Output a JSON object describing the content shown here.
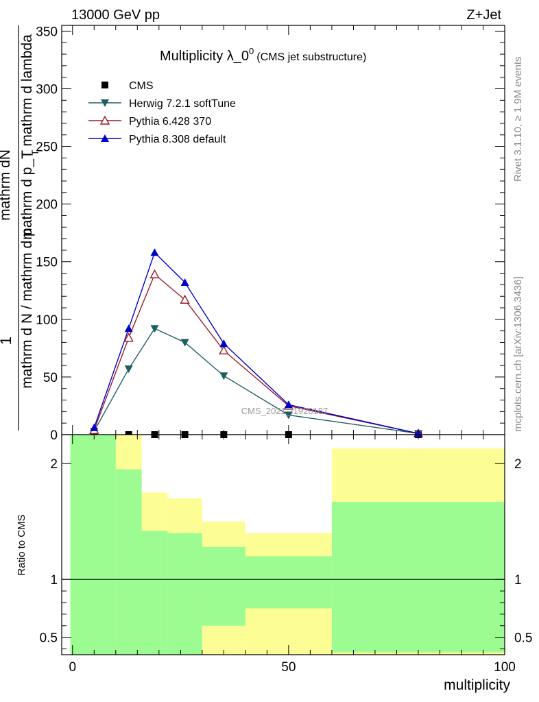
{
  "header": {
    "left": "13000 GeV pp",
    "right": "Z+Jet"
  },
  "side_labels": {
    "rivet": "Rivet 3.1.10, ≥ 1.9M events",
    "mcplots": "mcplots.cern.ch [arXiv:1306.3436]"
  },
  "watermark": "CMS_2021_I1920187",
  "chart_data": [
    {
      "type": "line",
      "title_main": "Multiplicity λ_0",
      "title_sup": "0",
      "title_sub": "(CMS jet substructure)",
      "ylabel_left_1": "1",
      "ylabel_frac_num": "mathrm dN",
      "ylabel_frac_den": "mathrm d p_T mathrm d lambda",
      "ylabel_den_main": "mathrm d N / mathrm d p",
      "ylabel_den_mid": " mathrm d p",
      "ylabel_den_end": " mathrm d lambda",
      "xlim": [
        -2.5,
        100
      ],
      "ylim": [
        0,
        355
      ],
      "x_ticks": [
        0,
        50,
        100
      ],
      "y_ticks": [
        0,
        50,
        100,
        150,
        200,
        250,
        300,
        350
      ],
      "legend_position": "top-left",
      "series": [
        {
          "name": "CMS",
          "marker": "square",
          "color": "#000000",
          "x": [
            5,
            13,
            19,
            26,
            35,
            50,
            80
          ],
          "y": [
            0,
            0,
            0,
            0,
            0,
            0,
            0
          ]
        },
        {
          "name": "Herwig 7.2.1 softTune",
          "marker": "triangle-down",
          "color": "#1c5e63",
          "x": [
            5,
            13,
            19,
            26,
            35,
            50,
            80
          ],
          "y": [
            3,
            57,
            92,
            80,
            51,
            17,
            1
          ]
        },
        {
          "name": "Pythia 6.428 370",
          "marker": "triangle-up-open",
          "color": "#9b1b24",
          "x": [
            5,
            13,
            19,
            26,
            35,
            50,
            80
          ],
          "y": [
            4,
            84,
            139,
            117,
            73,
            25,
            1
          ]
        },
        {
          "name": "Pythia 8.308 default",
          "marker": "triangle-up",
          "color": "#0000cc",
          "x": [
            5,
            13,
            19,
            26,
            35,
            50,
            80
          ],
          "y": [
            6,
            92,
            158,
            132,
            79,
            26,
            1
          ]
        }
      ]
    },
    {
      "type": "area",
      "ylabel": "Ratio to CMS",
      "xlabel": "multiplicity",
      "xlim": [
        -2.5,
        100
      ],
      "ylim": [
        0.35,
        2.25
      ],
      "y_ticks": [
        0.5,
        1,
        2
      ],
      "reference_line": 1,
      "bins": [
        {
          "x0": -0.5,
          "x1": 10,
          "green": [
            0.35,
            2.25
          ],
          "yellow": [
            0.35,
            2.25
          ]
        },
        {
          "x0": 10,
          "x1": 16,
          "green": [
            0.35,
            1.95
          ],
          "yellow": [
            0.35,
            2.25
          ]
        },
        {
          "x0": 16,
          "x1": 22,
          "green": [
            0.35,
            1.42
          ],
          "yellow": [
            0.35,
            1.75
          ]
        },
        {
          "x0": 22,
          "x1": 30,
          "green": [
            0.35,
            1.4
          ],
          "yellow": [
            0.35,
            1.7
          ]
        },
        {
          "x0": 30,
          "x1": 40,
          "green": [
            0.6,
            1.28
          ],
          "yellow": [
            0.35,
            1.5
          ]
        },
        {
          "x0": 40,
          "x1": 60,
          "green": [
            0.75,
            1.2
          ],
          "yellow": [
            0.35,
            1.4
          ]
        },
        {
          "x0": 60,
          "x1": 100,
          "green": [
            0.37,
            1.67
          ],
          "yellow": [
            0.35,
            2.13
          ]
        }
      ],
      "colors": {
        "green": "#9dfc91",
        "yellow": "#fdfd96"
      }
    }
  ]
}
